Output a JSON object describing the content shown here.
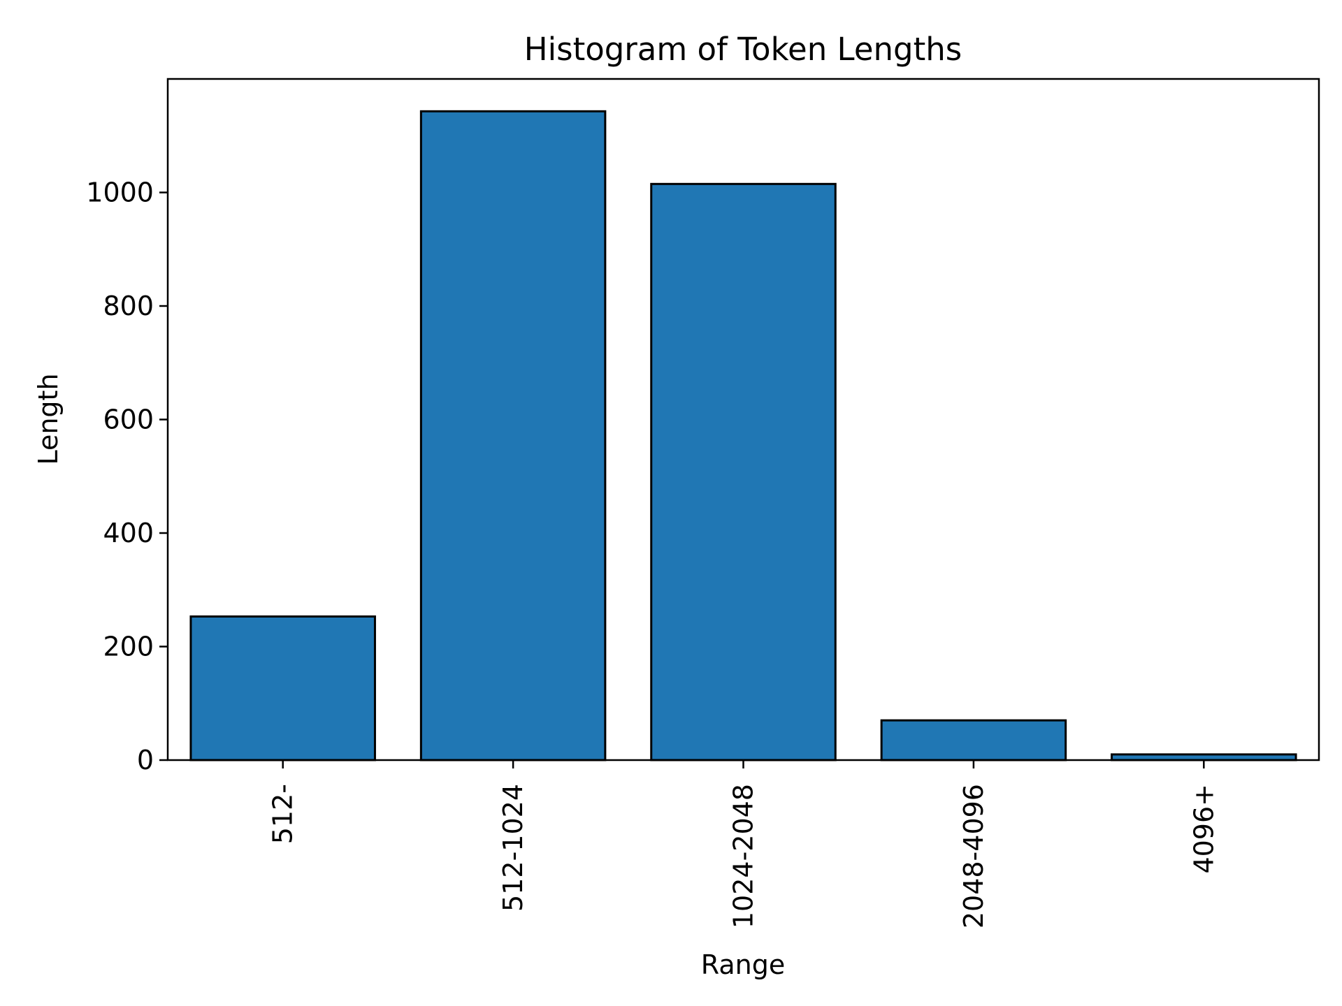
{
  "chart_data": {
    "type": "bar",
    "title": "Histogram of Token Lengths",
    "xlabel": "Range",
    "ylabel": "Length",
    "categories": [
      "512-",
      "512-1024",
      "1024-2048",
      "2048-4096",
      "4096+"
    ],
    "values": [
      253,
      1143,
      1015,
      70,
      10
    ],
    "ylim": [
      0,
      1200
    ],
    "yticks": [
      0,
      200,
      400,
      600,
      800,
      1000
    ],
    "ytick_labels": [
      "0",
      "200",
      "400",
      "600",
      "800",
      "1000"
    ],
    "grid": false,
    "legend": "none",
    "colors": {
      "bar_fill": "#2077b4",
      "bar_edge": "#000000",
      "axis": "#000000"
    }
  }
}
